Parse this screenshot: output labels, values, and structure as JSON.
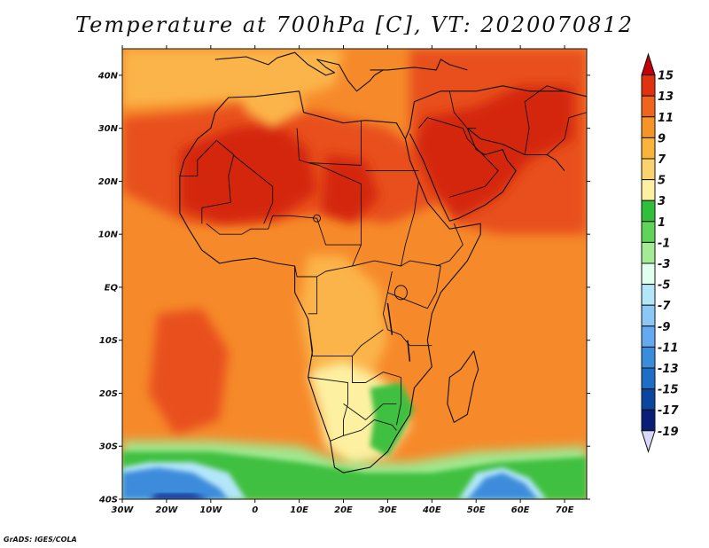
{
  "title": "Temperature at 700hPa [C], VT: 2020070812",
  "credit": "GrADS: IGES/COLA",
  "map": {
    "lon_range": [
      -30,
      75
    ],
    "lat_range": [
      -40,
      45
    ],
    "lon_ticks": [
      {
        "v": -30,
        "label": "30W"
      },
      {
        "v": -20,
        "label": "20W"
      },
      {
        "v": -10,
        "label": "10W"
      },
      {
        "v": 0,
        "label": "0"
      },
      {
        "v": 10,
        "label": "10E"
      },
      {
        "v": 20,
        "label": "20E"
      },
      {
        "v": 30,
        "label": "30E"
      },
      {
        "v": 40,
        "label": "40E"
      },
      {
        "v": 50,
        "label": "50E"
      },
      {
        "v": 60,
        "label": "60E"
      },
      {
        "v": 70,
        "label": "70E"
      }
    ],
    "lat_ticks": [
      {
        "v": 40,
        "label": "40N"
      },
      {
        "v": 30,
        "label": "30N"
      },
      {
        "v": 20,
        "label": "20N"
      },
      {
        "v": 10,
        "label": "10N"
      },
      {
        "v": 0,
        "label": "EQ"
      },
      {
        "v": -10,
        "label": "10S"
      },
      {
        "v": -20,
        "label": "20S"
      },
      {
        "v": -30,
        "label": "30S"
      },
      {
        "v": -40,
        "label": "40S"
      }
    ]
  },
  "colorbar": {
    "labels": [
      "15",
      "13",
      "11",
      "9",
      "7",
      "5",
      "3",
      "1",
      "-1",
      "-3",
      "-5",
      "-7",
      "-9",
      "-11",
      "-13",
      "-15",
      "-17",
      "-19"
    ],
    "colors": [
      "#c0000a",
      "#e0320e",
      "#f0641e",
      "#f79428",
      "#fab43c",
      "#fcd26e",
      "#fdf0a0",
      "#2fbf3a",
      "#5fd35a",
      "#a3ec95",
      "#e0ffee",
      "#b4e6fa",
      "#8cc8f5",
      "#64aaf0",
      "#3c8cdc",
      "#1e6ec8",
      "#0a46a0",
      "#0a1e78",
      "#d8d8f8"
    ]
  },
  "field_colors": {
    "ocean_base": "#f68a2a",
    "hot": "#d4280e",
    "warm": "#e8501a",
    "mild": "#fbb448",
    "cool": "#fdf0a0",
    "green": "#40c040",
    "lightgreen": "#a0e890",
    "blue": "#3c8cdc",
    "deepblue": "#0a2a8a",
    "paleblue": "#b4e6fa",
    "border": "#111111"
  }
}
